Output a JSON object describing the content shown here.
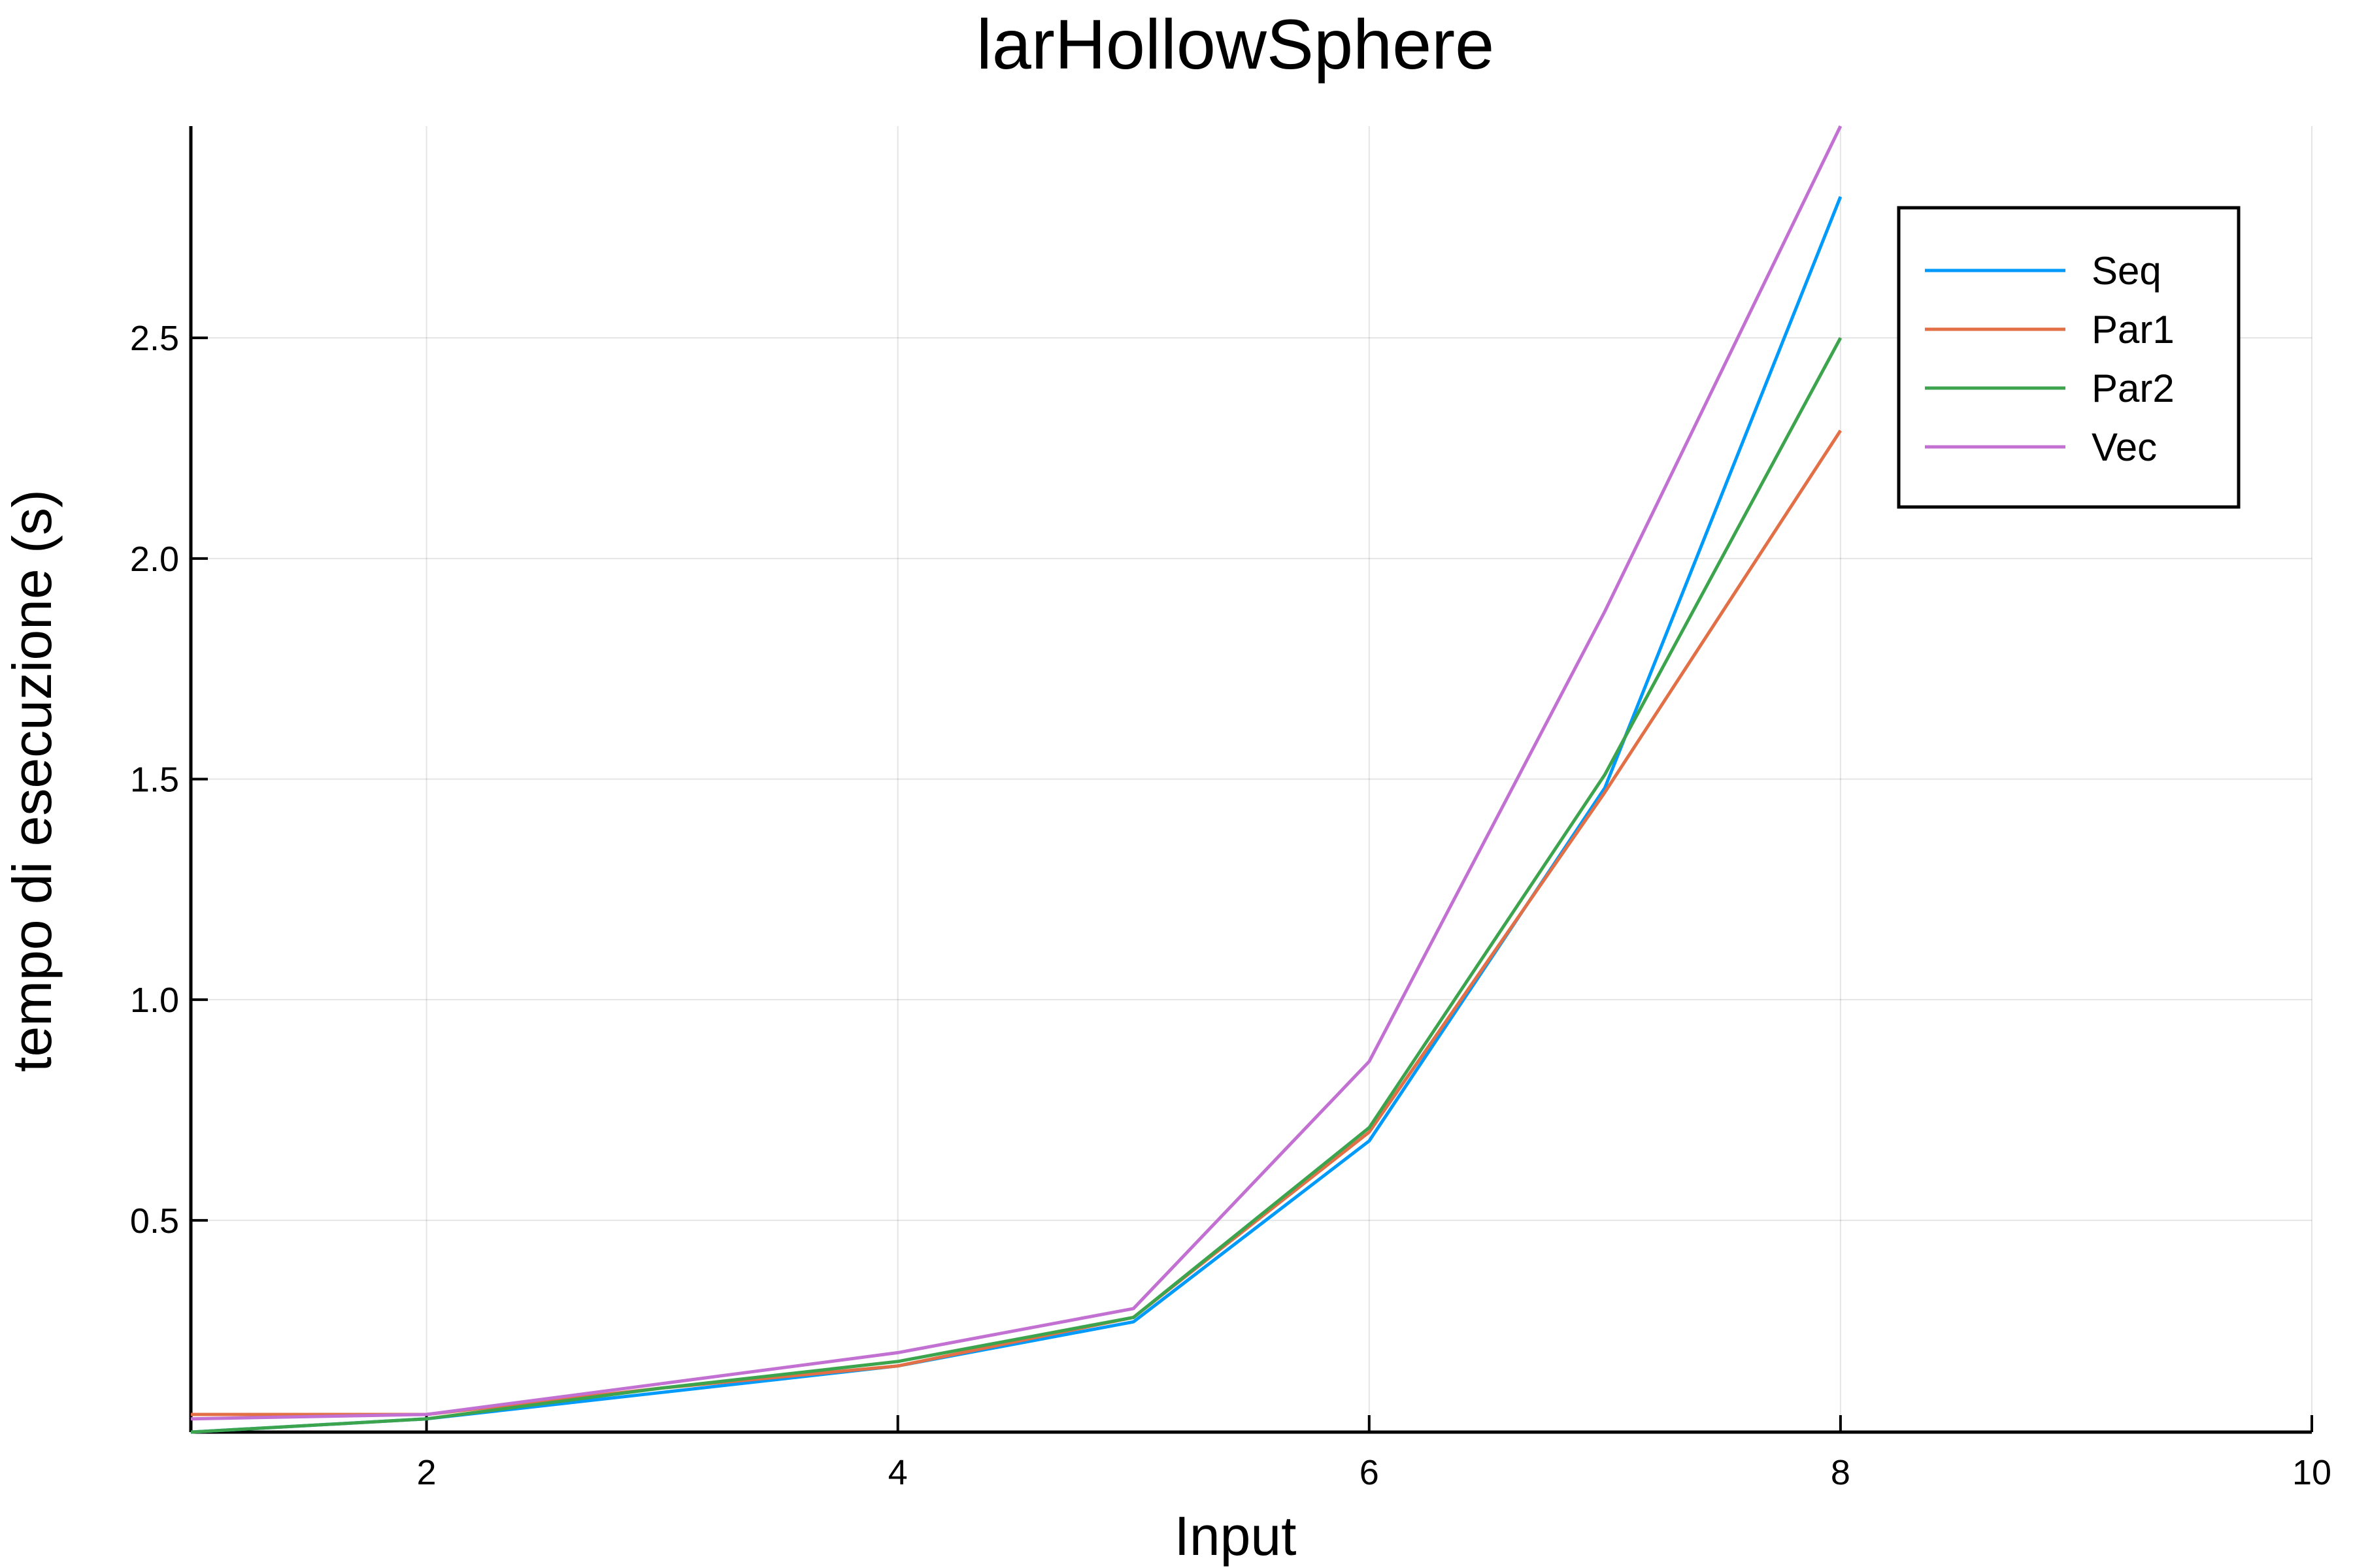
{
  "chart_data": {
    "type": "line",
    "title": "larHollowSphere",
    "xlabel": "Input",
    "ylabel": "tempo di esecuzione (s)",
    "xlim": [
      1,
      10
    ],
    "ylim": [
      0.02,
      2.98
    ],
    "xticks": [
      2,
      4,
      6,
      8,
      10
    ],
    "xtick_labels": [
      "2",
      "4",
      "6",
      "8",
      "10"
    ],
    "yticks": [
      0.5,
      1.0,
      1.5,
      2.0,
      2.5
    ],
    "ytick_labels": [
      "0.5",
      "1.0",
      "1.5",
      "2.0",
      "2.5"
    ],
    "grid": true,
    "legend_position": "top-right",
    "x": [
      1,
      2,
      3,
      4,
      5,
      6,
      7,
      8
    ],
    "series": [
      {
        "name": "Seq",
        "color": "#009AFA",
        "values": [
          0.02,
          0.05,
          0.11,
          0.17,
          0.27,
          0.68,
          1.48,
          2.82
        ]
      },
      {
        "name": "Par1",
        "color": "#E26F46",
        "values": [
          0.06,
          0.06,
          0.12,
          0.17,
          0.28,
          0.7,
          1.47,
          2.29
        ]
      },
      {
        "name": "Par2",
        "color": "#3DA44E",
        "values": [
          0.02,
          0.05,
          0.12,
          0.18,
          0.28,
          0.71,
          1.51,
          2.5
        ]
      },
      {
        "name": "Vec",
        "color": "#C271D2",
        "values": [
          0.05,
          0.06,
          0.13,
          0.2,
          0.3,
          0.86,
          1.88,
          2.98
        ]
      }
    ]
  }
}
